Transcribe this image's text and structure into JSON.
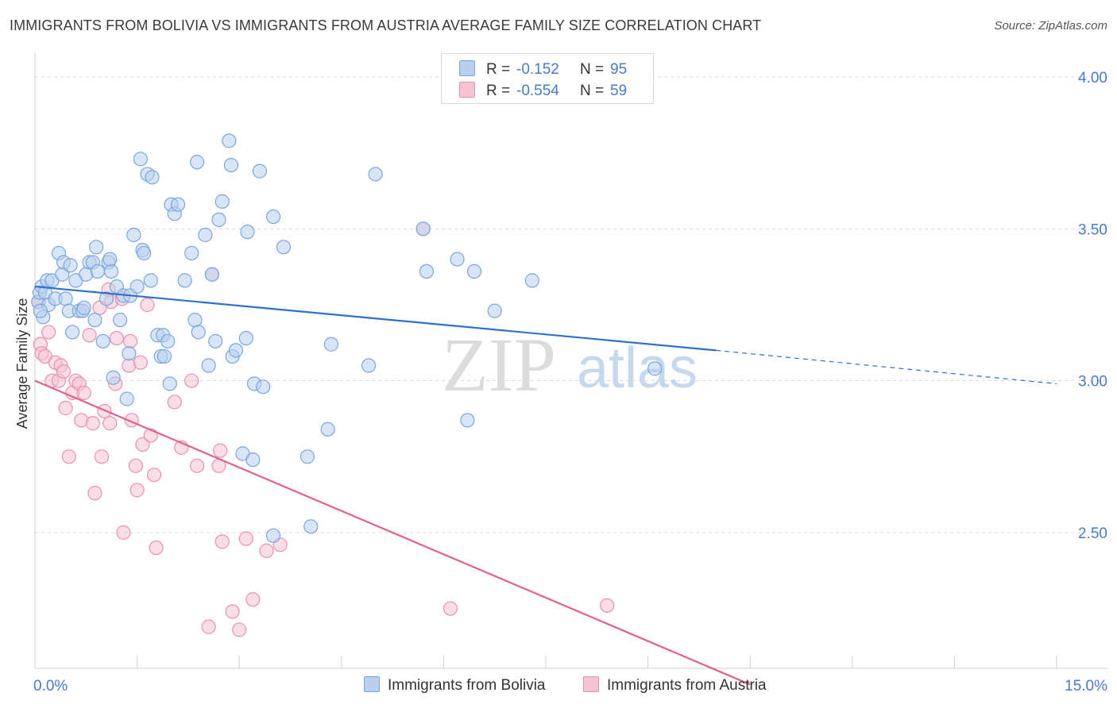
{
  "header": {
    "title": "IMMIGRANTS FROM BOLIVIA VS IMMIGRANTS FROM AUSTRIA AVERAGE FAMILY SIZE CORRELATION CHART",
    "source": "Source: ZipAtlas.com"
  },
  "watermark": {
    "zip": "ZIP",
    "atlas": "atlas"
  },
  "colors": {
    "bolivia_fill": "#b8d0ee",
    "bolivia_stroke": "#7aa6df",
    "bolivia_line": "#2f6fd0",
    "austria_fill": "#f6c3d3",
    "austria_stroke": "#ec8fae",
    "austria_line": "#e0608e",
    "tick_text": "#4a7ac8",
    "grid": "#d9d9d9"
  },
  "legend_top": [
    {
      "r_label": "R =",
      "r_value": "-0.152",
      "n_label": "N =",
      "n_value": "95"
    },
    {
      "r_label": "R =",
      "r_value": "-0.554",
      "n_label": "N =",
      "n_value": "59"
    }
  ],
  "chart_data": {
    "type": "scatter",
    "title": "IMMIGRANTS FROM BOLIVIA VS IMMIGRANTS FROM AUSTRIA AVERAGE FAMILY SIZE CORRELATION CHART",
    "xlabel": "",
    "ylabel": "Average Family Size",
    "xlim": [
      0,
      15
    ],
    "ylim": [
      2.0,
      4.08
    ],
    "x_tick_labels": [
      "0.0%",
      "15.0%"
    ],
    "y_ticks": [
      2.5,
      3.0,
      3.5,
      4.0
    ],
    "y_tick_labels": [
      "2.50",
      "3.00",
      "3.50",
      "4.00"
    ],
    "grid": "horizontal dashed",
    "legend": [
      "Immigrants from Bolivia",
      "Immigrants from Austria"
    ],
    "series": [
      {
        "name": "Immigrants from Bolivia",
        "r": -0.152,
        "n": 95,
        "trend": {
          "x0": 0,
          "y0": 3.31,
          "x1": 10.0,
          "y1": 3.1,
          "dashed_to_x": 15.0,
          "dashed_to_y": 2.99
        },
        "points": [
          [
            0.05,
            3.26
          ],
          [
            0.07,
            3.29
          ],
          [
            0.1,
            3.31
          ],
          [
            0.12,
            3.21
          ],
          [
            0.15,
            3.29
          ],
          [
            0.18,
            3.33
          ],
          [
            0.2,
            3.25
          ],
          [
            0.25,
            3.33
          ],
          [
            0.3,
            3.27
          ],
          [
            0.35,
            3.42
          ],
          [
            0.4,
            3.35
          ],
          [
            0.42,
            3.39
          ],
          [
            0.45,
            3.27
          ],
          [
            0.5,
            3.23
          ],
          [
            0.52,
            3.38
          ],
          [
            0.55,
            3.16
          ],
          [
            0.6,
            3.33
          ],
          [
            0.65,
            3.23
          ],
          [
            0.7,
            3.23
          ],
          [
            0.72,
            3.24
          ],
          [
            0.75,
            3.35
          ],
          [
            0.8,
            3.39
          ],
          [
            0.85,
            3.39
          ],
          [
            0.88,
            3.2
          ],
          [
            0.9,
            3.44
          ],
          [
            0.92,
            3.36
          ],
          [
            1.0,
            3.13
          ],
          [
            1.05,
            3.27
          ],
          [
            1.08,
            3.39
          ],
          [
            1.12,
            3.36
          ],
          [
            1.15,
            3.01
          ],
          [
            1.2,
            3.31
          ],
          [
            1.25,
            3.2
          ],
          [
            1.3,
            3.28
          ],
          [
            1.35,
            2.94
          ],
          [
            1.38,
            3.09
          ],
          [
            1.4,
            3.28
          ],
          [
            1.45,
            3.48
          ],
          [
            1.5,
            3.31
          ],
          [
            1.55,
            3.73
          ],
          [
            1.58,
            3.43
          ],
          [
            1.6,
            3.42
          ],
          [
            1.65,
            3.68
          ],
          [
            1.7,
            3.33
          ],
          [
            1.72,
            3.67
          ],
          [
            1.8,
            3.15
          ],
          [
            1.85,
            3.08
          ],
          [
            1.88,
            3.15
          ],
          [
            1.9,
            3.08
          ],
          [
            1.95,
            3.13
          ],
          [
            1.98,
            2.99
          ],
          [
            2.0,
            3.58
          ],
          [
            2.05,
            3.55
          ],
          [
            2.1,
            3.58
          ],
          [
            2.2,
            3.33
          ],
          [
            2.3,
            3.42
          ],
          [
            2.35,
            3.2
          ],
          [
            2.38,
            3.72
          ],
          [
            2.4,
            3.16
          ],
          [
            2.5,
            3.48
          ],
          [
            2.55,
            3.05
          ],
          [
            2.6,
            3.35
          ],
          [
            2.65,
            3.13
          ],
          [
            2.7,
            3.53
          ],
          [
            2.75,
            3.59
          ],
          [
            2.85,
            3.79
          ],
          [
            2.88,
            3.71
          ],
          [
            2.9,
            3.08
          ],
          [
            2.95,
            3.1
          ],
          [
            3.05,
            2.76
          ],
          [
            3.1,
            3.14
          ],
          [
            3.12,
            3.49
          ],
          [
            3.2,
            2.74
          ],
          [
            3.22,
            2.99
          ],
          [
            3.3,
            3.69
          ],
          [
            3.35,
            2.98
          ],
          [
            3.5,
            3.54
          ],
          [
            3.5,
            2.49
          ],
          [
            3.65,
            3.44
          ],
          [
            4.0,
            2.75
          ],
          [
            4.05,
            2.52
          ],
          [
            4.3,
            2.84
          ],
          [
            4.35,
            3.12
          ],
          [
            4.9,
            3.05
          ],
          [
            5.0,
            3.68
          ],
          [
            5.7,
            3.5
          ],
          [
            5.75,
            3.36
          ],
          [
            6.2,
            3.4
          ],
          [
            6.35,
            2.87
          ],
          [
            6.45,
            3.36
          ],
          [
            6.75,
            3.23
          ],
          [
            7.3,
            3.33
          ],
          [
            9.1,
            3.04
          ],
          [
            0.08,
            3.23
          ],
          [
            1.1,
            3.4
          ]
        ]
      },
      {
        "name": "Immigrants from Austria",
        "r": -0.554,
        "n": 59,
        "trend": {
          "x0": 0,
          "y0": 3.0,
          "x1": 10.5,
          "y1": 2.0
        },
        "points": [
          [
            0.05,
            3.26
          ],
          [
            0.08,
            3.12
          ],
          [
            0.1,
            3.09
          ],
          [
            0.15,
            3.08
          ],
          [
            0.2,
            3.16
          ],
          [
            0.25,
            3.0
          ],
          [
            0.3,
            3.06
          ],
          [
            0.35,
            3.0
          ],
          [
            0.38,
            3.05
          ],
          [
            0.42,
            3.03
          ],
          [
            0.45,
            2.91
          ],
          [
            0.5,
            2.75
          ],
          [
            0.55,
            2.96
          ],
          [
            0.6,
            3.0
          ],
          [
            0.65,
            2.99
          ],
          [
            0.68,
            2.87
          ],
          [
            0.72,
            2.96
          ],
          [
            0.8,
            3.15
          ],
          [
            0.85,
            2.86
          ],
          [
            0.88,
            2.63
          ],
          [
            0.95,
            3.24
          ],
          [
            0.98,
            2.75
          ],
          [
            1.02,
            2.9
          ],
          [
            1.08,
            3.3
          ],
          [
            1.1,
            2.86
          ],
          [
            1.12,
            3.26
          ],
          [
            1.18,
            2.99
          ],
          [
            1.2,
            3.14
          ],
          [
            1.28,
            3.27
          ],
          [
            1.3,
            2.5
          ],
          [
            1.38,
            3.05
          ],
          [
            1.4,
            3.13
          ],
          [
            1.42,
            2.87
          ],
          [
            1.48,
            2.72
          ],
          [
            1.5,
            2.64
          ],
          [
            1.55,
            3.06
          ],
          [
            1.58,
            2.79
          ],
          [
            1.65,
            3.25
          ],
          [
            1.7,
            2.82
          ],
          [
            1.75,
            2.69
          ],
          [
            1.78,
            2.45
          ],
          [
            2.05,
            2.93
          ],
          [
            2.15,
            2.78
          ],
          [
            2.3,
            3.0
          ],
          [
            2.38,
            2.72
          ],
          [
            2.55,
            2.19
          ],
          [
            2.6,
            3.35
          ],
          [
            2.7,
            2.72
          ],
          [
            2.72,
            2.77
          ],
          [
            2.75,
            2.47
          ],
          [
            2.9,
            2.24
          ],
          [
            3.0,
            2.18
          ],
          [
            3.1,
            2.48
          ],
          [
            3.2,
            2.28
          ],
          [
            3.4,
            2.44
          ],
          [
            3.6,
            2.46
          ],
          [
            5.7,
            3.5
          ],
          [
            6.1,
            2.25
          ],
          [
            8.4,
            2.26
          ]
        ]
      }
    ]
  },
  "legend_bottom": [
    {
      "label": "Immigrants from Bolivia"
    },
    {
      "label": "Immigrants from Austria"
    }
  ]
}
